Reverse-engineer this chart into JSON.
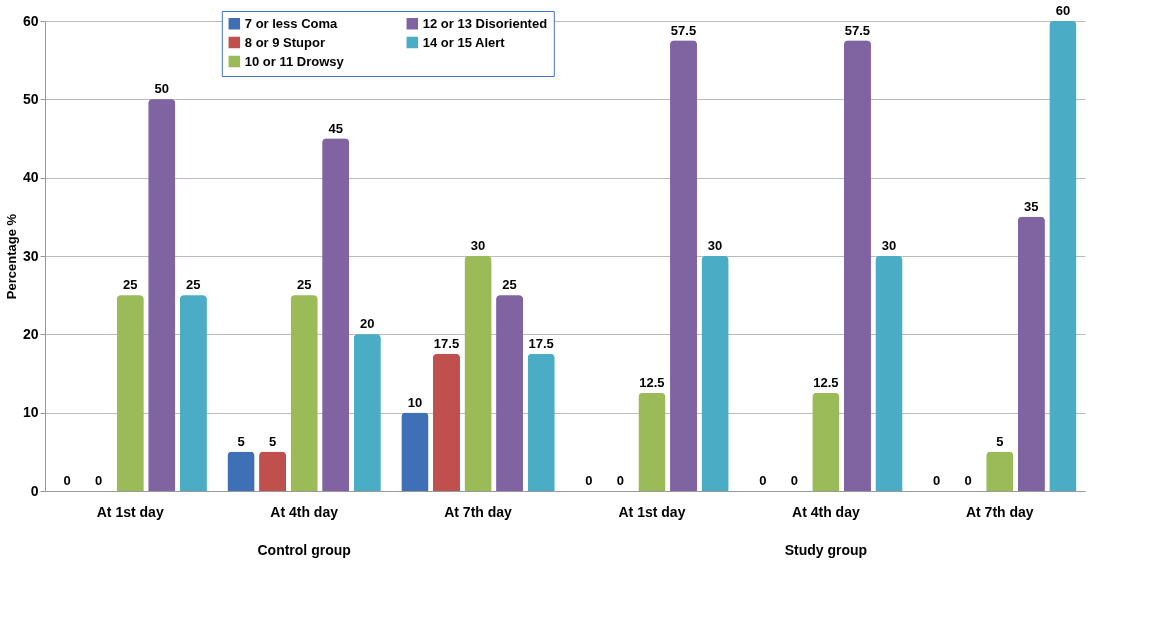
{
  "chart_data": {
    "type": "bar",
    "ylabel": "Percentage %",
    "categories": [
      "At 1st day",
      "At 4th day",
      "At 7th day",
      "At 1st day",
      "At 4th day",
      "At 7th day"
    ],
    "annotations": [
      "Control group",
      "Study group"
    ],
    "series": [
      {
        "name": "7 or less Coma",
        "color": "#3f6fb5",
        "values": [
          0,
          5,
          10,
          0,
          0,
          0
        ]
      },
      {
        "name": "8 or 9 Stupor",
        "color": "#c0504d",
        "values": [
          0,
          5,
          17.5,
          0,
          0,
          0
        ]
      },
      {
        "name": "10 or 11 Drowsy",
        "color": "#9bbb59",
        "values": [
          25,
          25,
          30,
          12.5,
          12.5,
          5
        ]
      },
      {
        "name": "12 or 13 Disoriented",
        "color": "#8064a2",
        "values": [
          50,
          45,
          25,
          57.5,
          57.5,
          35
        ]
      },
      {
        "name": "14 or 15 Alert",
        "color": "#4bacc6",
        "values": [
          25,
          20,
          17.5,
          30,
          30,
          60
        ]
      }
    ],
    "ylim": [
      0,
      60
    ],
    "yticks": [
      0,
      10,
      20,
      30,
      40,
      50,
      60
    ],
    "grid": "y",
    "legend": "top",
    "data_labels": true
  }
}
